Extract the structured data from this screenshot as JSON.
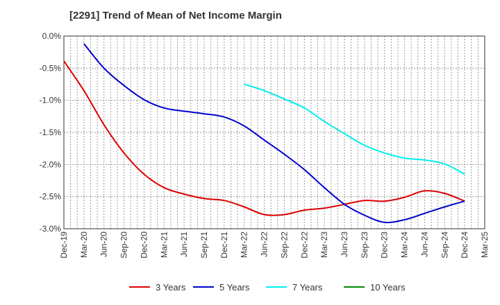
{
  "chart_data": {
    "type": "line",
    "title": "[2291]  Trend of Mean of Net Income Margin",
    "xlabel": "",
    "ylabel": "",
    "x_ticks": [
      "Dec-19",
      "Mar-20",
      "Jun-20",
      "Sep-20",
      "Dec-20",
      "Mar-21",
      "Jun-21",
      "Sep-21",
      "Dec-21",
      "Mar-22",
      "Jun-22",
      "Sep-22",
      "Dec-22",
      "Mar-23",
      "Jun-23",
      "Sep-23",
      "Dec-23",
      "Mar-24",
      "Jun-24",
      "Sep-24",
      "Dec-24",
      "Mar-25"
    ],
    "y_ticks": [
      "0.0%",
      "-0.5%",
      "-1.0%",
      "-1.5%",
      "-2.0%",
      "-2.5%",
      "-3.0%"
    ],
    "ylim": [
      -3.0,
      0.0
    ],
    "grid": true,
    "legend_position": "bottom",
    "series": [
      {
        "name": "3 Years",
        "color": "#dd0000",
        "x": [
          "Dec-19",
          "Mar-20",
          "Jun-20",
          "Sep-20",
          "Dec-20",
          "Mar-21",
          "Jun-21",
          "Sep-21",
          "Dec-21",
          "Mar-22",
          "Jun-22",
          "Sep-22",
          "Dec-22",
          "Mar-23",
          "Jun-23",
          "Sep-23",
          "Dec-23",
          "Mar-24",
          "Jun-24",
          "Sep-24",
          "Dec-24"
        ],
        "values": [
          -0.39,
          -0.85,
          -1.38,
          -1.82,
          -2.15,
          -2.36,
          -2.46,
          -2.53,
          -2.56,
          -2.66,
          -2.78,
          -2.78,
          -2.71,
          -2.68,
          -2.62,
          -2.56,
          -2.57,
          -2.51,
          -2.41,
          -2.45,
          -2.57
        ]
      },
      {
        "name": "5 Years",
        "color": "#0000cc",
        "x": [
          "Mar-20",
          "Jun-20",
          "Sep-20",
          "Dec-20",
          "Mar-21",
          "Jun-21",
          "Sep-21",
          "Dec-21",
          "Mar-22",
          "Jun-22",
          "Sep-22",
          "Dec-22",
          "Mar-23",
          "Jun-23",
          "Sep-23",
          "Dec-23",
          "Mar-24",
          "Jun-24",
          "Sep-24",
          "Dec-24"
        ],
        "values": [
          -0.12,
          -0.5,
          -0.77,
          -0.99,
          -1.12,
          -1.17,
          -1.21,
          -1.26,
          -1.4,
          -1.62,
          -1.84,
          -2.08,
          -2.36,
          -2.62,
          -2.79,
          -2.9,
          -2.86,
          -2.76,
          -2.66,
          -2.57
        ]
      },
      {
        "name": "7 Years",
        "color": "#00eeee",
        "x": [
          "Mar-22",
          "Jun-22",
          "Sep-22",
          "Dec-22",
          "Mar-23",
          "Jun-23",
          "Sep-23",
          "Dec-23",
          "Mar-24",
          "Jun-24",
          "Sep-24",
          "Dec-24"
        ],
        "values": [
          -0.75,
          -0.85,
          -0.98,
          -1.12,
          -1.33,
          -1.52,
          -1.7,
          -1.82,
          -1.9,
          -1.93,
          -1.99,
          -2.15
        ]
      },
      {
        "name": "10 Years",
        "color": "#008800",
        "x": [],
        "values": []
      }
    ]
  }
}
